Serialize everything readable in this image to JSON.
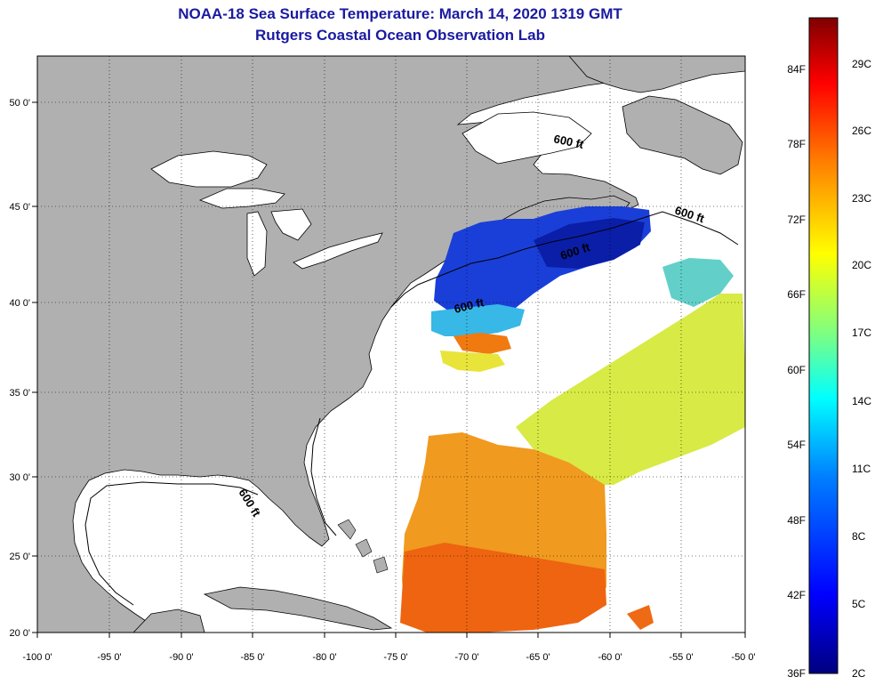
{
  "header": {
    "title": "NOAA-18 Sea Surface Temperature:  March 14, 2020 1319 GMT",
    "subtitle": "Rutgers Coastal Ocean Observation Lab"
  },
  "axes": {
    "latitude_labels": [
      "50 0'",
      "45 0'",
      "40 0'",
      "35 0'",
      "30 0'",
      "25 0'",
      "20 0'"
    ],
    "longitude_labels": [
      "-100 0'",
      "-95 0'",
      "-90 0'",
      "-85 0'",
      "-80 0'",
      "-75 0'",
      "-70 0'",
      "-65 0'",
      "-60 0'",
      "-55 0'",
      "-50 0'"
    ]
  },
  "contour_labels": [
    "600 ft",
    "600 ft",
    "600 ft",
    "600 ft",
    "600 ft"
  ],
  "colorbar": {
    "fahrenheit_labels": [
      "84F",
      "78F",
      "72F",
      "66F",
      "60F",
      "54F",
      "48F",
      "42F",
      "36F"
    ],
    "celsius_labels": [
      "29C",
      "26C",
      "23C",
      "20C",
      "17C",
      "14C",
      "11C",
      "8C",
      "5C",
      "2C"
    ],
    "colors": [
      "#00007f",
      "#0000ff",
      "#007fff",
      "#00ffff",
      "#7fff7f",
      "#ffff00",
      "#ff7f00",
      "#ff0000",
      "#7f0000"
    ]
  },
  "colors": {
    "land": "#b0b0b0",
    "title": "#1a1aa0"
  }
}
